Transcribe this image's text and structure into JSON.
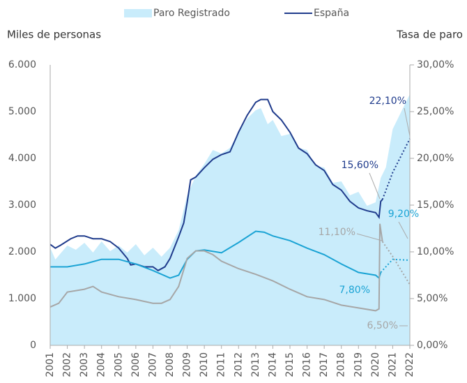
{
  "chart_data": {
    "type": "line",
    "legend": {
      "position": "top"
    },
    "ylabel": "Miles de personas",
    "y2label": "Tasa de paro",
    "xlim": [
      2001,
      2022
    ],
    "xticks": [
      2001,
      2002,
      2003,
      2004,
      2005,
      2006,
      2007,
      2008,
      2009,
      2010,
      2011,
      2012,
      2013,
      2014,
      2015,
      2016,
      2017,
      2018,
      2019,
      2020,
      2021,
      2022
    ],
    "ylim": [
      0,
      6000
    ],
    "yticks": [
      0,
      {
        "value": 1000,
        "label": "1.000"
      },
      {
        "value": 2000,
        "label": "2.000"
      },
      {
        "value": 3000,
        "label": "3.000"
      },
      {
        "value": 4000,
        "label": "4.000"
      },
      {
        "value": 5000,
        "label": "5.000"
      },
      {
        "value": 6000,
        "label": "6.000"
      }
    ],
    "y2lim": [
      0,
      30
    ],
    "y2ticks": [
      {
        "value": 0,
        "label": "0,00%"
      },
      {
        "value": 5,
        "label": "5,00%"
      },
      {
        "value": 10,
        "label": "10,00%"
      },
      {
        "value": 15,
        "label": "15,00%"
      },
      {
        "value": 20,
        "label": "20,00%"
      },
      {
        "value": 25,
        "label": "25,00%"
      },
      {
        "value": 30,
        "label": "30,00%"
      }
    ],
    "series": [
      {
        "name": "Paro Registrado",
        "kind": "area",
        "color": "#c9ecfb",
        "axis": "y",
        "x": [
          2001,
          2001.3,
          2002,
          2002.5,
          2003,
          2003.5,
          2004,
          2004.5,
          2005,
          2005.5,
          2006,
          2006.5,
          2007,
          2007.5,
          2008,
          2008.5,
          2009,
          2009.5,
          2010,
          2010.5,
          2011,
          2011.5,
          2012,
          2012.5,
          2013,
          2013.3,
          2013.7,
          2014,
          2014.5,
          2015,
          2015.5,
          2016,
          2016.5,
          2017,
          2017.5,
          2018,
          2018.5,
          2019,
          2019.5,
          2020,
          2020.3,
          2020.6,
          2021,
          2021.5,
          2022
        ],
        "values": [
          2090,
          1836,
          2134,
          2045,
          2194,
          1985,
          2224,
          2015,
          2134,
          1985,
          2164,
          1925,
          2090,
          1896,
          2090,
          2463,
          3209,
          3627,
          3881,
          4179,
          4104,
          4224,
          4552,
          4851,
          5030,
          5075,
          4731,
          4821,
          4478,
          4522,
          4224,
          4179,
          3836,
          3806,
          3478,
          3507,
          3209,
          3284,
          2985,
          3060,
          3582,
          3806,
          4627,
          5000,
          5373
        ]
      },
      {
        "name": "España",
        "kind": "line",
        "color": "#1f3b8c",
        "axis": "y2",
        "x": [
          2001,
          2001.3,
          2001.6,
          2002.2,
          2002.6,
          2003,
          2003.5,
          2004,
          2004.5,
          2005,
          2005.5,
          2005.7,
          2006,
          2006.5,
          2007,
          2007.3,
          2007.7,
          2008,
          2008.5,
          2008.8,
          2009,
          2009.2,
          2009.5,
          2010,
          2010.5,
          2011,
          2011.5,
          2012,
          2012.5,
          2013,
          2013.3,
          2013.7,
          2014,
          2014.5,
          2015,
          2015.5,
          2016,
          2016.5,
          2017,
          2017.5,
          2018,
          2018.5,
          2019,
          2019.5,
          2020,
          2020.2,
          2020.3,
          2020.4
        ],
        "values": [
          10.8,
          10.4,
          10.7,
          11.4,
          11.7,
          11.7,
          11.4,
          11.4,
          11.1,
          10.4,
          9.3,
          8.6,
          8.7,
          8.4,
          8.4,
          8.0,
          8.4,
          9.3,
          11.6,
          13.1,
          15.3,
          17.7,
          18.0,
          19.0,
          19.9,
          20.4,
          20.7,
          22.8,
          24.6,
          26.0,
          26.3,
          26.3,
          25.0,
          24.1,
          22.8,
          21.1,
          20.5,
          19.3,
          18.7,
          17.2,
          16.6,
          15.4,
          14.7,
          14.4,
          14.2,
          13.7,
          15.4,
          15.6
        ]
      },
      {
        "kind": "line",
        "dash": true,
        "color": "#1f3b8c",
        "axis": "y2",
        "x": [
          2020.4,
          2021,
          2021.5,
          2022
        ],
        "values": [
          15.6,
          18.5,
          20.3,
          22.1
        ]
      },
      {
        "kind": "line",
        "color": "#1aa3d4",
        "axis": "y2",
        "x": [
          2001,
          2002,
          2003,
          2004,
          2005,
          2006,
          2007,
          2008,
          2008.5,
          2009,
          2009.5,
          2010,
          2011,
          2012,
          2013,
          2013.5,
          2014,
          2015,
          2016,
          2017,
          2018,
          2019,
          2020,
          2020.2,
          2020.3
        ],
        "values": [
          8.4,
          8.4,
          8.7,
          9.2,
          9.2,
          8.7,
          8.0,
          7.2,
          7.5,
          9.2,
          10.1,
          10.2,
          9.9,
          11.0,
          12.2,
          12.1,
          11.7,
          11.2,
          10.4,
          9.7,
          8.7,
          7.8,
          7.5,
          7.2,
          7.8
        ]
      },
      {
        "kind": "line",
        "dash": true,
        "color": "#1aa3d4",
        "axis": "y2",
        "x": [
          2020.3,
          2021,
          2022
        ],
        "values": [
          7.8,
          9.2,
          9.1
        ]
      },
      {
        "kind": "line",
        "color": "#a6a6a6",
        "axis": "y2",
        "x": [
          2001,
          2001.5,
          2002,
          2003,
          2003.5,
          2004,
          2005,
          2006,
          2007,
          2007.5,
          2008,
          2008.5,
          2009,
          2009.5,
          2010,
          2010.5,
          2011,
          2012,
          2013,
          2014,
          2015,
          2016,
          2017,
          2018,
          2019,
          2020,
          2020.2,
          2020.25,
          2020.4
        ],
        "values": [
          4.1,
          4.5,
          5.7,
          6.0,
          6.3,
          5.7,
          5.2,
          4.9,
          4.5,
          4.5,
          4.9,
          6.3,
          9.3,
          10.1,
          10.1,
          9.7,
          9.0,
          8.2,
          7.6,
          6.9,
          6.0,
          5.2,
          4.9,
          4.3,
          4.0,
          3.7,
          3.9,
          13.0,
          11.1
        ]
      },
      {
        "kind": "line",
        "dash": true,
        "color": "#a6a6a6",
        "axis": "y2",
        "x": [
          2020.4,
          2021,
          2022
        ],
        "values": [
          11.1,
          9.5,
          6.5
        ]
      }
    ],
    "annotations": [
      {
        "text": "22,10%",
        "color": "#1f3b8c"
      },
      {
        "text": "15,60%",
        "color": "#1f3b8c"
      },
      {
        "text": "9,20%",
        "color": "#1aa3d4"
      },
      {
        "text": "11,10%",
        "color": "#a6a6a6"
      },
      {
        "text": "7,80%",
        "color": "#1aa3d4"
      },
      {
        "text": "6,50%",
        "color": "#a6a6a6"
      }
    ]
  }
}
